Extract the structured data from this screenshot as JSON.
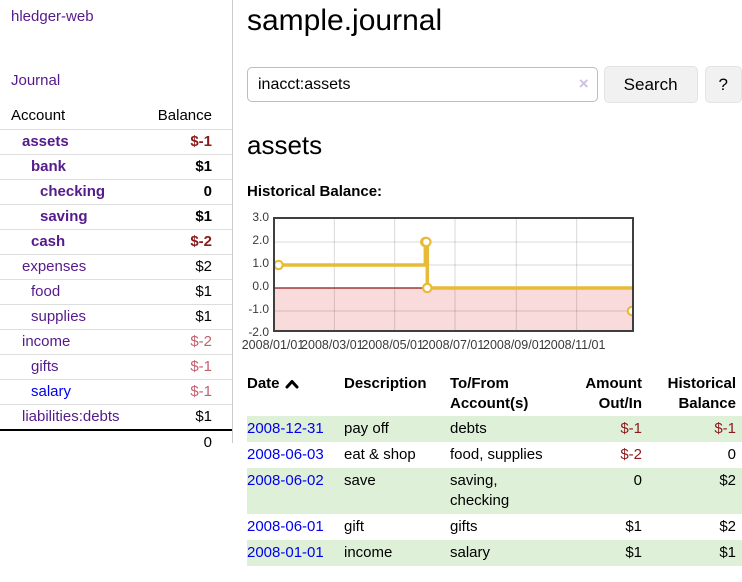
{
  "sidebar": {
    "brand": "hledger-web",
    "journal_link": "Journal",
    "accounts_table": {
      "headers": {
        "account": "Account",
        "balance": "Balance"
      },
      "rows": [
        {
          "name": "assets",
          "balance": "$-1",
          "indent": 1,
          "bold": true,
          "balance_tone": "neg-strong",
          "link": "visited"
        },
        {
          "name": "bank",
          "balance": "$1",
          "indent": 2,
          "bold": true,
          "balance_tone": "",
          "link": "visited"
        },
        {
          "name": "checking",
          "balance": "0",
          "indent": 3,
          "bold": true,
          "balance_tone": "",
          "link": "visited"
        },
        {
          "name": "saving",
          "balance": "$1",
          "indent": 3,
          "bold": true,
          "balance_tone": "",
          "link": "visited"
        },
        {
          "name": "cash",
          "balance": "$-2",
          "indent": 2,
          "bold": true,
          "balance_tone": "neg-strong",
          "link": "visited"
        },
        {
          "name": "expenses",
          "balance": "$2",
          "indent": 1,
          "bold": false,
          "balance_tone": "",
          "link": "visited"
        },
        {
          "name": "food",
          "balance": "$1",
          "indent": 2,
          "bold": false,
          "balance_tone": "",
          "link": "visited"
        },
        {
          "name": "supplies",
          "balance": "$1",
          "indent": 2,
          "bold": false,
          "balance_tone": "",
          "link": "visited"
        },
        {
          "name": "income",
          "balance": "$-2",
          "indent": 1,
          "bold": false,
          "balance_tone": "neg-muted",
          "link": "visited"
        },
        {
          "name": "gifts",
          "balance": "$-1",
          "indent": 2,
          "bold": false,
          "balance_tone": "neg-muted",
          "link": "visited"
        },
        {
          "name": "salary",
          "balance": "$-1",
          "indent": 2,
          "bold": false,
          "balance_tone": "neg-muted",
          "link": "unvisited"
        },
        {
          "name": "liabilities:debts",
          "balance": "$1",
          "indent": 1,
          "bold": false,
          "balance_tone": "",
          "link": "visited"
        }
      ],
      "total": "0"
    }
  },
  "header": {
    "title": "sample.journal"
  },
  "search": {
    "value": "inacct:assets",
    "clear_icon": "×",
    "button": "Search",
    "help_button": "?"
  },
  "account_page": {
    "heading": "assets",
    "chart_title": "Historical Balance:"
  },
  "chart_data": {
    "type": "line",
    "step": true,
    "title": "Historical Balance:",
    "series": [
      {
        "name": "$",
        "points": [
          {
            "date": "2008-01-01",
            "value": 1
          },
          {
            "date": "2008-06-01",
            "value": 2
          },
          {
            "date": "2008-06-02",
            "value": 2
          },
          {
            "date": "2008-06-03",
            "value": 0
          },
          {
            "date": "2008-12-31",
            "value": -1
          }
        ]
      }
    ],
    "legend": [
      {
        "label": "$",
        "color": "#edc240"
      }
    ],
    "legend_position": "top-right",
    "x_range": [
      "2008-01-01",
      "2008-12-31"
    ],
    "ylim": [
      -2,
      3
    ],
    "y_ticks": [
      3,
      2,
      1,
      0,
      -1,
      -2
    ],
    "y_tick_labels": [
      "3.0",
      "2.0",
      "1.0",
      "0.0",
      "-1.0",
      "-2.0"
    ],
    "x_ticks": [
      "2008-01-01",
      "2008-03-01",
      "2008-05-01",
      "2008-07-01",
      "2008-09-01",
      "2008-11-01"
    ],
    "x_tick_labels": [
      "2008/01/01",
      "2008/03/01",
      "2008/05/01",
      "2008/07/01",
      "2008/09/01",
      "2008/11/01"
    ],
    "grid": true,
    "line_color": "#e8bb36",
    "marker_fill": "#ffffff",
    "negative_fill": "#fadbdb",
    "zero_line_color": "#8c1717"
  },
  "register_table": {
    "headers": {
      "date": "Date",
      "description": "Description",
      "accounts": "To/From Account(s)",
      "amount": "Amount Out/In",
      "balance": "Historical Balance"
    },
    "rows": [
      {
        "date": "2008-12-31",
        "description": "pay off",
        "accounts": "debts",
        "amount": "$-1",
        "balance": "$-1",
        "amount_neg": true,
        "balance_neg": true
      },
      {
        "date": "2008-06-03",
        "description": "eat & shop",
        "accounts": "food, supplies",
        "amount": "$-2",
        "balance": "0",
        "amount_neg": true,
        "balance_neg": false
      },
      {
        "date": "2008-06-02",
        "description": "save",
        "accounts": "saving, checking",
        "amount": "0",
        "balance": "$2",
        "amount_neg": false,
        "balance_neg": false
      },
      {
        "date": "2008-06-01",
        "description": "gift",
        "accounts": "gifts",
        "amount": "$1",
        "balance": "$2",
        "amount_neg": false,
        "balance_neg": false
      },
      {
        "date": "2008-01-01",
        "description": "income",
        "accounts": "salary",
        "amount": "$1",
        "balance": "$1",
        "amount_neg": false,
        "balance_neg": false
      }
    ]
  },
  "colors": {
    "link_visited": "#551a8b",
    "link_unvisited": "#0000ee",
    "negative_strong": "#8b1a1a",
    "negative_muted": "#c25f6e",
    "row_highlight": "#dff0d8",
    "chart_line": "#e8bb36",
    "chart_negative_fill": "#fadbdb",
    "chart_zero_line": "#8c1717"
  }
}
